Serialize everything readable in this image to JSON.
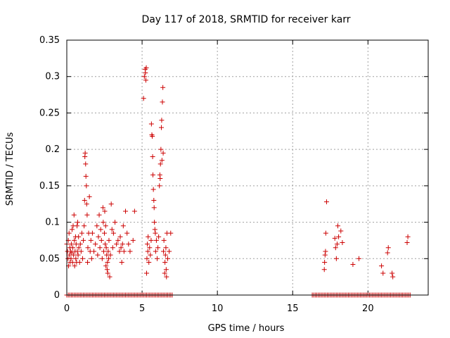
{
  "chart_data": {
    "type": "scatter",
    "title": "Day 117 of 2018, SRMTID for receiver karr",
    "xlabel": "GPS time / hours",
    "ylabel": "SRMTID / TECUs",
    "xlim": [
      0,
      24
    ],
    "ylim": [
      0,
      0.35
    ],
    "xticks": [
      0,
      5,
      10,
      15,
      20
    ],
    "xtick_labels": [
      "0",
      "5",
      "10",
      "15",
      "20"
    ],
    "yticks": [
      0,
      0.05,
      0.1,
      0.15,
      0.2,
      0.25,
      0.3,
      0.35
    ],
    "ytick_labels": [
      "0",
      "0.05",
      "0.1",
      "0.15",
      "0.2",
      "0.25",
      "0.3",
      "0.35"
    ],
    "grid": true,
    "marker": "+",
    "marker_color": "#cc0000",
    "series": [
      {
        "name": "SRMTID",
        "points": [
          [
            0.0,
            0.07
          ],
          [
            0.05,
            0.06
          ],
          [
            0.08,
            0.05
          ],
          [
            0.1,
            0.075
          ],
          [
            0.12,
            0.04
          ],
          [
            0.15,
            0.085
          ],
          [
            0.18,
            0.055
          ],
          [
            0.2,
            0.065
          ],
          [
            0.22,
            0.045
          ],
          [
            0.25,
            0.06
          ],
          [
            0.28,
            0.05
          ],
          [
            0.3,
            0.07
          ],
          [
            0.33,
            0.058
          ],
          [
            0.35,
            0.09
          ],
          [
            0.38,
            0.045
          ],
          [
            0.4,
            0.065
          ],
          [
            0.42,
            0.095
          ],
          [
            0.45,
            0.055
          ],
          [
            0.48,
            0.11
          ],
          [
            0.5,
            0.075
          ],
          [
            0.52,
            0.04
          ],
          [
            0.55,
            0.06
          ],
          [
            0.58,
            0.08
          ],
          [
            0.6,
            0.05
          ],
          [
            0.62,
            0.07
          ],
          [
            0.65,
            0.045
          ],
          [
            0.68,
            0.095
          ],
          [
            0.7,
            0.06
          ],
          [
            0.72,
            0.1
          ],
          [
            0.75,
            0.055
          ],
          [
            0.78,
            0.08
          ],
          [
            0.8,
            0.065
          ],
          [
            0.85,
            0.045
          ],
          [
            0.9,
            0.07
          ],
          [
            0.95,
            0.06
          ],
          [
            1.0,
            0.085
          ],
          [
            1.05,
            0.05
          ],
          [
            1.1,
            0.075
          ],
          [
            1.15,
            0.095
          ],
          [
            1.18,
            0.13
          ],
          [
            1.2,
            0.19
          ],
          [
            1.22,
            0.195
          ],
          [
            1.25,
            0.18
          ],
          [
            1.27,
            0.163
          ],
          [
            1.3,
            0.15
          ],
          [
            1.32,
            0.125
          ],
          [
            1.35,
            0.11
          ],
          [
            1.38,
            0.045
          ],
          [
            1.4,
            0.065
          ],
          [
            1.45,
            0.085
          ],
          [
            1.5,
            0.135
          ],
          [
            1.55,
            0.06
          ],
          [
            1.6,
            0.075
          ],
          [
            1.65,
            0.05
          ],
          [
            1.7,
            0.085
          ],
          [
            1.8,
            0.06
          ],
          [
            1.9,
            0.07
          ],
          [
            2.0,
            0.095
          ],
          [
            2.05,
            0.055
          ],
          [
            2.1,
            0.08
          ],
          [
            2.15,
            0.11
          ],
          [
            2.2,
            0.065
          ],
          [
            2.25,
            0.09
          ],
          [
            2.3,
            0.075
          ],
          [
            2.35,
            0.05
          ],
          [
            2.4,
            0.12
          ],
          [
            2.42,
            0.1
          ],
          [
            2.45,
            0.06
          ],
          [
            2.5,
            0.085
          ],
          [
            2.52,
            0.115
          ],
          [
            2.55,
            0.07
          ],
          [
            2.58,
            0.095
          ],
          [
            2.6,
            0.04
          ],
          [
            2.62,
            0.065
          ],
          [
            2.65,
            0.055
          ],
          [
            2.68,
            0.035
          ],
          [
            2.7,
            0.045
          ],
          [
            2.72,
            0.03
          ],
          [
            2.75,
            0.06
          ],
          [
            2.78,
            0.05
          ],
          [
            2.8,
            0.075
          ],
          [
            2.85,
            0.025
          ],
          [
            2.9,
            0.055
          ],
          [
            2.95,
            0.125
          ],
          [
            3.0,
            0.09
          ],
          [
            3.05,
            0.065
          ],
          [
            3.1,
            0.085
          ],
          [
            3.2,
            0.1
          ],
          [
            3.3,
            0.07
          ],
          [
            3.4,
            0.075
          ],
          [
            3.5,
            0.06
          ],
          [
            3.55,
            0.08
          ],
          [
            3.6,
            0.065
          ],
          [
            3.65,
            0.045
          ],
          [
            3.7,
            0.07
          ],
          [
            3.75,
            0.095
          ],
          [
            3.8,
            0.06
          ],
          [
            3.9,
            0.115
          ],
          [
            4.0,
            0.085
          ],
          [
            4.1,
            0.07
          ],
          [
            4.2,
            0.06
          ],
          [
            4.4,
            0.075
          ],
          [
            4.5,
            0.115
          ],
          [
            5.1,
            0.27
          ],
          [
            5.15,
            0.3
          ],
          [
            5.2,
            0.31
          ],
          [
            5.22,
            0.305
          ],
          [
            5.25,
            0.295
          ],
          [
            5.28,
            0.312
          ],
          [
            5.3,
            0.03
          ],
          [
            5.32,
            0.05
          ],
          [
            5.35,
            0.07
          ],
          [
            5.38,
            0.06
          ],
          [
            5.4,
            0.08
          ],
          [
            5.45,
            0.045
          ],
          [
            5.5,
            0.065
          ],
          [
            5.55,
            0.055
          ],
          [
            5.6,
            0.075
          ],
          [
            5.62,
            0.235
          ],
          [
            5.65,
            0.22
          ],
          [
            5.68,
            0.218
          ],
          [
            5.7,
            0.19
          ],
          [
            5.72,
            0.165
          ],
          [
            5.75,
            0.145
          ],
          [
            5.78,
            0.13
          ],
          [
            5.8,
            0.12
          ],
          [
            5.82,
            0.1
          ],
          [
            5.85,
            0.09
          ],
          [
            5.88,
            0.085
          ],
          [
            5.9,
            0.06
          ],
          [
            5.95,
            0.075
          ],
          [
            6.0,
            0.05
          ],
          [
            6.05,
            0.065
          ],
          [
            6.1,
            0.08
          ],
          [
            6.15,
            0.15
          ],
          [
            6.18,
            0.165
          ],
          [
            6.2,
            0.16
          ],
          [
            6.22,
            0.18
          ],
          [
            6.25,
            0.2
          ],
          [
            6.28,
            0.23
          ],
          [
            6.3,
            0.24
          ],
          [
            6.32,
            0.185
          ],
          [
            6.35,
            0.265
          ],
          [
            6.38,
            0.285
          ],
          [
            6.4,
            0.195
          ],
          [
            6.42,
            0.06
          ],
          [
            6.45,
            0.075
          ],
          [
            6.5,
            0.03
          ],
          [
            6.52,
            0.045
          ],
          [
            6.55,
            0.055
          ],
          [
            6.58,
            0.065
          ],
          [
            6.6,
            0.035
          ],
          [
            6.62,
            0.025
          ],
          [
            6.65,
            0.085
          ],
          [
            6.7,
            0.05
          ],
          [
            6.8,
            0.06
          ],
          [
            6.9,
            0.085
          ],
          [
            17.1,
            0.035
          ],
          [
            17.12,
            0.045
          ],
          [
            17.15,
            0.055
          ],
          [
            17.18,
            0.06
          ],
          [
            17.2,
            0.085
          ],
          [
            17.25,
            0.128
          ],
          [
            17.8,
            0.078
          ],
          [
            17.85,
            0.065
          ],
          [
            17.9,
            0.05
          ],
          [
            17.95,
            0.07
          ],
          [
            18.0,
            0.095
          ],
          [
            18.05,
            0.08
          ],
          [
            18.2,
            0.088
          ],
          [
            18.3,
            0.072
          ],
          [
            19.0,
            0.042
          ],
          [
            19.4,
            0.05
          ],
          [
            20.9,
            0.04
          ],
          [
            21.0,
            0.03
          ],
          [
            21.3,
            0.058
          ],
          [
            21.35,
            0.065
          ],
          [
            21.6,
            0.03
          ],
          [
            21.65,
            0.025
          ],
          [
            22.6,
            0.072
          ],
          [
            22.65,
            0.08
          ]
        ]
      }
    ],
    "zero_bands": [
      [
        0.0,
        7.0
      ],
      [
        16.3,
        22.8
      ]
    ]
  }
}
